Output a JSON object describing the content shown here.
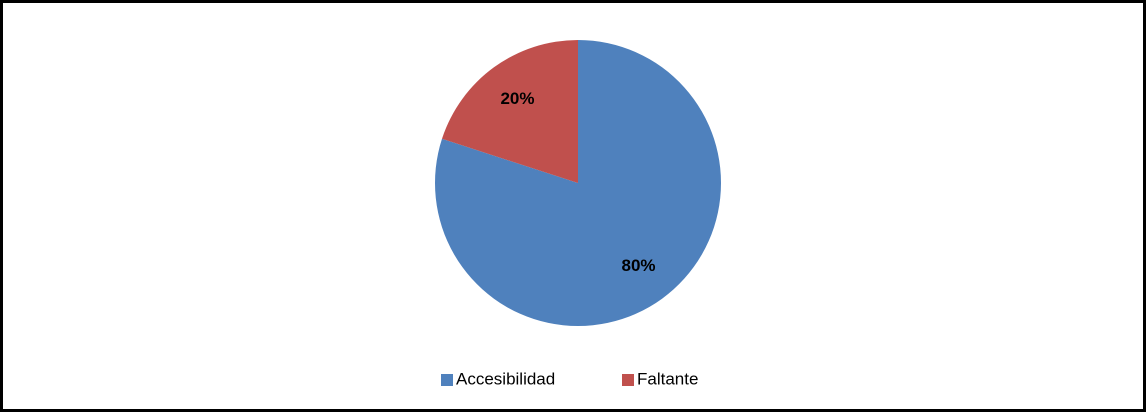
{
  "chart_data": {
    "type": "pie",
    "categories": [
      "Accesibilidad",
      "Faltante"
    ],
    "values": [
      80,
      20
    ],
    "value_labels": [
      "80%",
      "20%"
    ],
    "colors": [
      "#4f81bd",
      "#c0504d"
    ],
    "legend": "bottom"
  }
}
